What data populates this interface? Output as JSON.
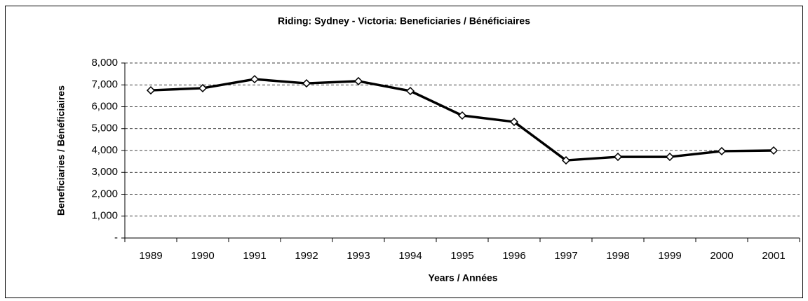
{
  "chart_data": {
    "type": "line",
    "title": "Riding:  Sydney - Victoria:  Beneficiaries / Bénéficiaires",
    "xlabel": "Years / Années",
    "ylabel": "Beneficiaries / Bénéficiaires",
    "categories": [
      "1989",
      "1990",
      "1991",
      "1992",
      "1993",
      "1994",
      "1995",
      "1996",
      "1997",
      "1998",
      "1999",
      "2000",
      "2001"
    ],
    "values": [
      6750,
      6850,
      7260,
      7070,
      7170,
      6720,
      5600,
      5310,
      3550,
      3710,
      3710,
      3970,
      4000
    ],
    "color": "#000000",
    "ylim": [
      0,
      8000
    ],
    "yticks": [
      {
        "value": 0,
        "label": "-"
      },
      {
        "value": 1000,
        "label": "1,000"
      },
      {
        "value": 2000,
        "label": "2,000"
      },
      {
        "value": 3000,
        "label": "3,000"
      },
      {
        "value": 4000,
        "label": "4,000"
      },
      {
        "value": 5000,
        "label": "5,000"
      },
      {
        "value": 6000,
        "label": "6,000"
      },
      {
        "value": 7000,
        "label": "7,000"
      },
      {
        "value": 8000,
        "label": "8,000"
      }
    ],
    "grid": true
  }
}
